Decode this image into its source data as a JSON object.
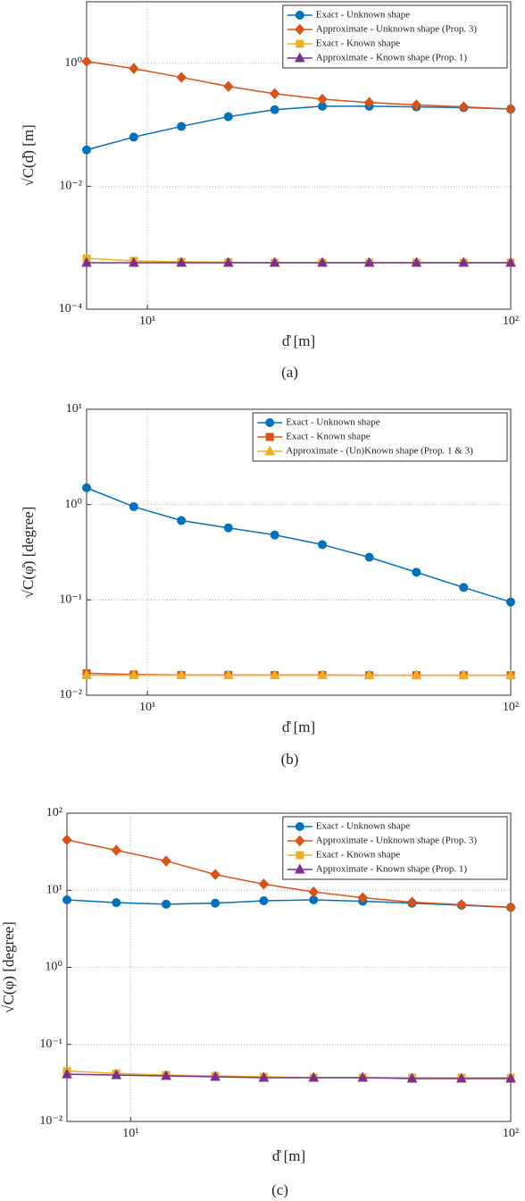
{
  "chart_data": [
    {
      "type": "line",
      "caption": "(a)",
      "xlabel": "d̊ [m]",
      "ylabel": "√C(d̊) [m]",
      "xscale": "log",
      "yscale": "log",
      "grid": true,
      "legend": "upper right",
      "x": [
        6.8,
        9.17,
        12.4,
        16.7,
        22.4,
        30.3,
        40.8,
        55,
        74.2,
        100
      ],
      "xlim": [
        6.8,
        100
      ],
      "xticks": [
        {
          "value": 10,
          "label": "10¹"
        },
        {
          "value": 100,
          "label": "10²"
        }
      ],
      "ylim": [
        0.0001,
        10
      ],
      "yticks": [
        {
          "value": 0.0001,
          "label": "10⁻⁴"
        },
        {
          "value": 0.01,
          "label": "10⁻²"
        },
        {
          "value": 1,
          "label": "10⁰"
        }
      ],
      "series": [
        {
          "name": "Exact - Unknown shape",
          "color": "#0072bd",
          "marker": "circle",
          "values": [
            0.039,
            0.063,
            0.094,
            0.135,
            0.176,
            0.2,
            0.2,
            0.195,
            0.19,
            0.18
          ]
        },
        {
          "name": "Approximate - Unknown shape (Prop. 3)",
          "color": "#d95319",
          "marker": "diamond",
          "values": [
            1.07,
            0.82,
            0.59,
            0.42,
            0.32,
            0.26,
            0.23,
            0.21,
            0.195,
            0.18
          ]
        },
        {
          "name": "Exact - Known shape",
          "color": "#edb120",
          "marker": "square",
          "values": [
            0.00067,
            0.00061,
            0.00059,
            0.00058,
            0.00057,
            0.00057,
            0.00057,
            0.00057,
            0.00057,
            0.00057
          ]
        },
        {
          "name": "Approximate - Known shape (Prop. 1)",
          "color": "#7e2f8e",
          "marker": "triangle",
          "values": [
            0.00057,
            0.00057,
            0.00057,
            0.00057,
            0.00057,
            0.00057,
            0.00057,
            0.00057,
            0.00057,
            0.00057
          ]
        }
      ]
    },
    {
      "type": "line",
      "caption": "(b)",
      "xlabel": "d̊ [m]",
      "ylabel": "√C(φ̊) [degree]",
      "xscale": "log",
      "yscale": "log",
      "grid": true,
      "legend": "upper right",
      "x": [
        6.8,
        9.17,
        12.4,
        16.7,
        22.4,
        30.3,
        40.8,
        55,
        74.2,
        100
      ],
      "xlim": [
        6.8,
        100
      ],
      "xticks": [
        {
          "value": 10,
          "label": "10¹"
        },
        {
          "value": 100,
          "label": "10²"
        }
      ],
      "ylim": [
        0.01,
        10
      ],
      "yticks": [
        {
          "value": 0.01,
          "label": "10⁻²"
        },
        {
          "value": 0.1,
          "label": "10⁻¹"
        },
        {
          "value": 1,
          "label": "10⁰"
        },
        {
          "value": 10,
          "label": "10¹"
        }
      ],
      "series": [
        {
          "name": "Exact - Unknown shape",
          "color": "#0072bd",
          "marker": "circle",
          "values": [
            1.5,
            0.95,
            0.68,
            0.57,
            0.48,
            0.38,
            0.28,
            0.195,
            0.135,
            0.095
          ]
        },
        {
          "name": "Exact - Known shape",
          "color": "#d95319",
          "marker": "square",
          "values": [
            0.017,
            0.0165,
            0.0163,
            0.0163,
            0.0163,
            0.0163,
            0.0162,
            0.0162,
            0.0162,
            0.0162
          ]
        },
        {
          "name": "Approximate - (Un)Known shape (Prop. 1 & 3)",
          "color": "#edb120",
          "marker": "triangle",
          "values": [
            0.0162,
            0.0162,
            0.0162,
            0.0162,
            0.0162,
            0.0162,
            0.0162,
            0.0162,
            0.0162,
            0.0162
          ]
        }
      ]
    },
    {
      "type": "line",
      "caption": "(c)",
      "xlabel": "d̊ [m]",
      "ylabel": "√C(φ) [degree]",
      "xscale": "log",
      "yscale": "log",
      "grid": true,
      "legend": "upper right",
      "x": [
        6.8,
        9.17,
        12.4,
        16.7,
        22.4,
        30.3,
        40.8,
        55,
        74.2,
        100
      ],
      "xlim": [
        6.8,
        100
      ],
      "xticks": [
        {
          "value": 10,
          "label": "10¹"
        },
        {
          "value": 100,
          "label": "10²"
        }
      ],
      "ylim": [
        0.01,
        100
      ],
      "yticks": [
        {
          "value": 0.01,
          "label": "10⁻²"
        },
        {
          "value": 0.1,
          "label": "10⁻¹"
        },
        {
          "value": 1,
          "label": "10⁰"
        },
        {
          "value": 10,
          "label": "10¹"
        },
        {
          "value": 100,
          "label": "10²"
        }
      ],
      "series": [
        {
          "name": "Exact - Unknown shape",
          "color": "#0072bd",
          "marker": "circle",
          "values": [
            7.5,
            6.9,
            6.6,
            6.8,
            7.3,
            7.5,
            7.2,
            6.8,
            6.4,
            6.0
          ]
        },
        {
          "name": "Approximate - Unknown shape (Prop. 3)",
          "color": "#d95319",
          "marker": "diamond",
          "values": [
            45,
            33,
            24,
            16,
            12,
            9.5,
            8,
            7,
            6.5,
            6
          ]
        },
        {
          "name": "Exact - Known shape",
          "color": "#edb120",
          "marker": "square",
          "values": [
            0.045,
            0.042,
            0.04,
            0.039,
            0.038,
            0.037,
            0.037,
            0.037,
            0.037,
            0.037
          ]
        },
        {
          "name": "Approximate - Known shape (Prop. 1)",
          "color": "#7e2f8e",
          "marker": "triangle",
          "values": [
            0.041,
            0.04,
            0.039,
            0.038,
            0.037,
            0.037,
            0.037,
            0.036,
            0.036,
            0.036
          ]
        }
      ]
    }
  ]
}
